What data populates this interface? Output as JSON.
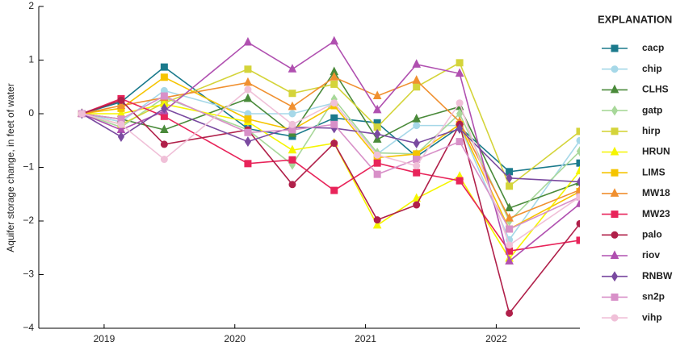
{
  "chart_data": {
    "type": "line",
    "y_label": "Aquifer storage change, in feet of water",
    "legend_title": "EXPLANATION",
    "x": [
      2019.33,
      2019.63,
      2019.96,
      2020.6,
      2020.94,
      2021.26,
      2021.59,
      2021.89,
      2022.22,
      2022.6,
      2023.14
    ],
    "xlim": [
      2019,
      2023.14
    ],
    "xticks": [
      {
        "value": 2019.5,
        "label": "2019"
      },
      {
        "value": 2020.5,
        "label": "2020"
      },
      {
        "value": 2021.5,
        "label": "2021"
      },
      {
        "value": 2022.5,
        "label": "2022"
      }
    ],
    "ylim": [
      -4,
      2
    ],
    "yticks": [
      {
        "value": -4,
        "label": "−4"
      },
      {
        "value": -3,
        "label": "−3"
      },
      {
        "value": -2,
        "label": "−2"
      },
      {
        "value": -1,
        "label": "−1"
      },
      0,
      1,
      2
    ],
    "series": [
      {
        "name": "cacp",
        "color": "#1b7a8c",
        "marker": "square",
        "values": [
          0,
          0.22,
          0.87,
          -0.28,
          -0.42,
          -0.08,
          -0.17,
          -0.8,
          -0.25,
          -1.08,
          -0.92
        ]
      },
      {
        "name": "chip",
        "color": "#a6d8e8",
        "marker": "circle",
        "values": [
          0,
          -0.15,
          0.43,
          0.0,
          0.0,
          0.2,
          -0.75,
          -0.22,
          -0.22,
          -2.35,
          -0.5
        ]
      },
      {
        "name": "CLHS",
        "color": "#4a8a3a",
        "marker": "triangle",
        "values": [
          0,
          -0.1,
          -0.3,
          0.28,
          -0.37,
          0.78,
          -0.48,
          -0.1,
          0.13,
          -1.76,
          -1.28
        ]
      },
      {
        "name": "gatp",
        "color": "#a8d89a",
        "marker": "diamond",
        "values": [
          0,
          -0.25,
          0.3,
          -0.3,
          -0.95,
          0.27,
          -0.73,
          -0.75,
          0.0,
          -2.0,
          -0.7
        ]
      },
      {
        "name": "hirp",
        "color": "#d4d43a",
        "marker": "square",
        "values": [
          0,
          -0.2,
          0.2,
          0.83,
          0.38,
          0.55,
          -0.25,
          0.5,
          0.95,
          -1.35,
          -0.33
        ]
      },
      {
        "name": "HRUN",
        "color": "#f5f500",
        "marker": "triangle",
        "values": [
          0,
          0.0,
          0.18,
          -0.15,
          -0.68,
          -0.55,
          -2.08,
          -1.58,
          -1.17,
          -2.7,
          -1.07
        ]
      },
      {
        "name": "LIMS",
        "color": "#f5c400",
        "marker": "square",
        "values": [
          0,
          0.1,
          0.68,
          -0.1,
          -0.3,
          0.15,
          -0.82,
          -0.75,
          -0.2,
          -2.15,
          -1.45
        ]
      },
      {
        "name": "MW18",
        "color": "#f09030",
        "marker": "triangle",
        "values": [
          0,
          0.15,
          0.3,
          0.58,
          0.13,
          0.68,
          0.33,
          0.62,
          -0.15,
          -1.95,
          -1.42
        ]
      },
      {
        "name": "MW23",
        "color": "#e8245a",
        "marker": "square",
        "values": [
          0,
          0.28,
          -0.05,
          -0.93,
          -0.86,
          -1.43,
          -0.92,
          -1.1,
          -1.25,
          -2.56,
          -2.36
        ]
      },
      {
        "name": "palo",
        "color": "#b0204a",
        "marker": "circle",
        "values": [
          0,
          0.25,
          -0.57,
          -0.3,
          -1.32,
          -0.55,
          -1.98,
          -1.7,
          -0.2,
          -3.72,
          -2.05
        ]
      },
      {
        "name": "riov",
        "color": "#b050b0",
        "marker": "triangle",
        "values": [
          0,
          -0.3,
          0.05,
          1.33,
          0.83,
          1.35,
          0.07,
          0.92,
          0.75,
          -2.75,
          -1.68
        ]
      },
      {
        "name": "RNBW",
        "color": "#7a4aa0",
        "marker": "diamond",
        "values": [
          0,
          -0.43,
          0.1,
          -0.52,
          -0.25,
          -0.27,
          -0.38,
          -0.55,
          -0.28,
          -1.2,
          -1.27
        ]
      },
      {
        "name": "sn2p",
        "color": "#d890c8",
        "marker": "square",
        "values": [
          0,
          -0.1,
          0.33,
          -0.35,
          -0.3,
          -0.2,
          -1.13,
          -0.85,
          -0.52,
          -2.15,
          -1.55
        ]
      },
      {
        "name": "vihp",
        "color": "#f0c0d8",
        "marker": "circle",
        "values": [
          0,
          -0.2,
          -0.85,
          0.45,
          -0.2,
          0.2,
          -0.77,
          -0.97,
          0.2,
          -2.45,
          -1.55
        ]
      }
    ]
  }
}
